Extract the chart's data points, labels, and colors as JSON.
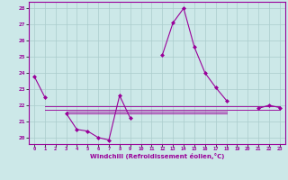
{
  "xlabel": "Windchill (Refroidissement éolien,°C)",
  "x": [
    0,
    1,
    2,
    3,
    4,
    5,
    6,
    7,
    8,
    9,
    10,
    11,
    12,
    13,
    14,
    15,
    16,
    17,
    18,
    19,
    20,
    21,
    22,
    23
  ],
  "y_main": [
    23.8,
    22.5,
    null,
    21.5,
    20.5,
    20.4,
    20.0,
    19.85,
    22.6,
    21.2,
    null,
    null,
    25.1,
    27.1,
    28.0,
    25.6,
    24.0,
    23.1,
    22.3,
    null,
    null,
    21.8,
    22.0,
    21.85
  ],
  "flat_lines": [
    {
      "y": 21.95,
      "x_start": 1,
      "x_end": 23
    },
    {
      "y": 21.8,
      "x_start": 1,
      "x_end": 23
    },
    {
      "y": 21.5,
      "x_start": 3,
      "x_end": 18
    },
    {
      "y": 21.65,
      "x_start": 3,
      "x_end": 18
    }
  ],
  "color": "#990099",
  "bg_color": "#cce8e8",
  "grid_color": "#aacccc",
  "ylim": [
    19.6,
    28.4
  ],
  "yticks": [
    20,
    21,
    22,
    23,
    24,
    25,
    26,
    27,
    28
  ],
  "xticks": [
    0,
    1,
    2,
    3,
    4,
    5,
    6,
    7,
    8,
    9,
    10,
    11,
    12,
    13,
    14,
    15,
    16,
    17,
    18,
    19,
    20,
    21,
    22,
    23
  ]
}
